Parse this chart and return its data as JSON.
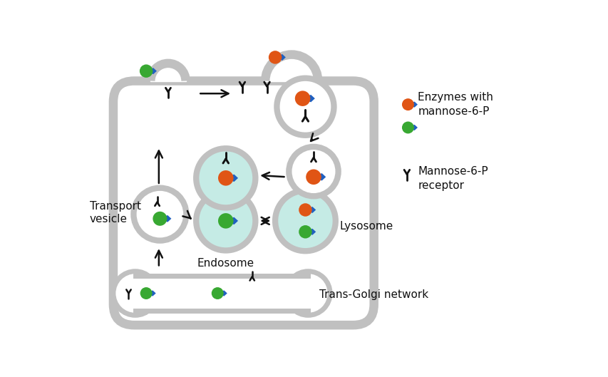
{
  "bg_color": "#ffffff",
  "cell_color": "#c0c0c0",
  "cell_lw": 9,
  "endo_fill": "#c5ebe5",
  "lyso_fill": "#c5ebe5",
  "orange": "#e05515",
  "green": "#38a832",
  "blue": "#2060c0",
  "text_color": "#111111",
  "legend_enzyme_text": "Enzymes with\nmannose-6-P",
  "legend_receptor_text": "Mannose-6-P\nreceptor",
  "label_transport": "Transport\nvesicle",
  "label_endosome": "Endosome",
  "label_lysosome": "Lysosome",
  "label_golgi": "Trans-Golgi network",
  "figw": 8.54,
  "figh": 5.29,
  "dpi": 100
}
